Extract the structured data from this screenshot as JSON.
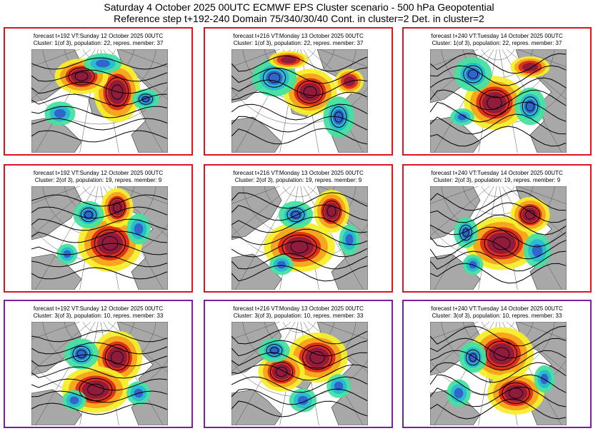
{
  "header": {
    "line1": "Saturday 4 October 2025 00UTC ECMWF EPS Cluster scenario - 500 hPa Geopotential",
    "line2": "Reference step t+192-240 Domain 75/340/30/40 Cont. in cluster=2 Det. in cluster=2"
  },
  "colors": {
    "cluster_1_border": "#e0141e",
    "cluster_2_border": "#e0141e",
    "cluster_3_border": "#7a1fa2",
    "land": "#a8a8a8",
    "positive_strong": "#8b1a3c",
    "positive_mid": "#e02a1a",
    "positive_light": "#f7a21b",
    "positive_weak": "#f5ee2a",
    "negative_weak": "#43e2a0",
    "negative_mid": "#27b9d4",
    "negative_strong": "#3060c8"
  },
  "panels": [
    {
      "caption1": "forecast t+192 VT:Sunday 12 October 2025 00UTC",
      "caption2": "Cluster: 1(of 3), population: 22, repres. member: 37"
    },
    {
      "caption1": "forecast t+216 VT:Monday 13 October 2025 00UTC",
      "caption2": "Cluster: 1(of 3), population: 22, repres. member: 37"
    },
    {
      "caption1": "forecast t+240 VT:Tuesday 14 October 2025 00UTC",
      "caption2": "Cluster: 1(of 3), population: 22, repres. member: 37"
    },
    {
      "caption1": "forecast t+192 VT:Sunday 12 October 2025 00UTC",
      "caption2": "Cluster: 2(of 3), population: 19, repres. member: 9"
    },
    {
      "caption1": "forecast t+216 VT:Monday 13 October 2025 00UTC",
      "caption2": "Cluster: 2(of 3), population: 19, repres. member: 9"
    },
    {
      "caption1": "forecast t+240 VT:Tuesday 14 October 2025 00UTC",
      "caption2": "Cluster: 2(of 3), population: 19, repres. member: 9"
    },
    {
      "caption1": "forecast t+192 VT:Sunday 12 October 2025 00UTC",
      "caption2": "Cluster: 3(of 3), population: 10, repres. member: 33"
    },
    {
      "caption1": "forecast t+216 VT:Monday 13 October 2025 00UTC",
      "caption2": "Cluster: 3(of 3), population: 10, repres. member: 33"
    },
    {
      "caption1": "forecast t+240 VT:Tuesday 14 October 2025 00UTC",
      "caption2": "Cluster: 3(of 3), population: 10, repres. member: 33"
    }
  ]
}
